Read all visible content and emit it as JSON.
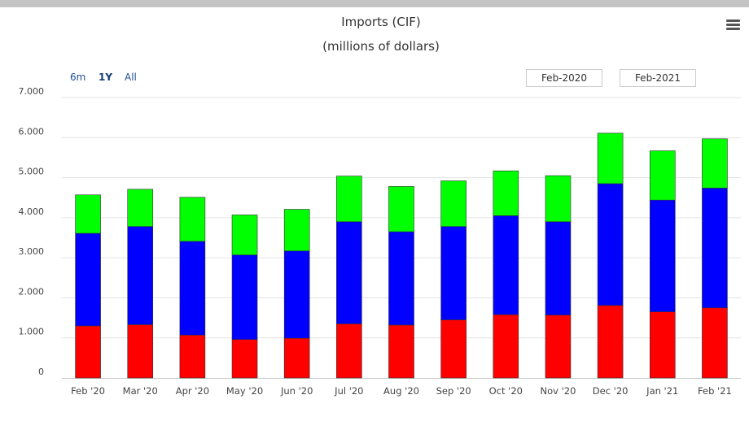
{
  "header": {
    "title": "Imports (CIF)",
    "subtitle": "(millions of dollars)"
  },
  "menu": {
    "icon": "hamburger-menu-icon"
  },
  "range_selector": {
    "buttons": [
      "6m",
      "1Y",
      "All"
    ],
    "selected": "1Y",
    "from": "Feb-2020",
    "to": "Feb-2021"
  },
  "chart_data": {
    "type": "bar",
    "stacked": true,
    "title": "Imports (CIF)",
    "subtitle": "(millions of dollars)",
    "categories": [
      "Feb '20",
      "Mar '20",
      "Apr '20",
      "May '20",
      "Jun '20",
      "Jul '20",
      "Aug '20",
      "Sep '20",
      "Oct '20",
      "Nov '20",
      "Dec '20",
      "Jan '21",
      "Feb '21"
    ],
    "series": [
      {
        "color": "#ff0000",
        "values": [
          1300,
          1330,
          1070,
          960,
          990,
          1350,
          1320,
          1450,
          1580,
          1570,
          1810,
          1650,
          1750
        ]
      },
      {
        "color": "#0000ff",
        "values": [
          2310,
          2450,
          2340,
          2110,
          2180,
          2550,
          2330,
          2330,
          2470,
          2330,
          3040,
          2790,
          2990
        ]
      },
      {
        "color": "#00ff00",
        "values": [
          960,
          930,
          1100,
          1000,
          1040,
          1140,
          1130,
          1140,
          1120,
          1150,
          1260,
          1230,
          1230
        ]
      }
    ],
    "yticks": [
      "0",
      "1.000",
      "2.000",
      "3.000",
      "4.000",
      "5.000",
      "6.000",
      "7.000"
    ],
    "ylim": [
      0,
      7000
    ],
    "grid": true,
    "legend": "none"
  }
}
